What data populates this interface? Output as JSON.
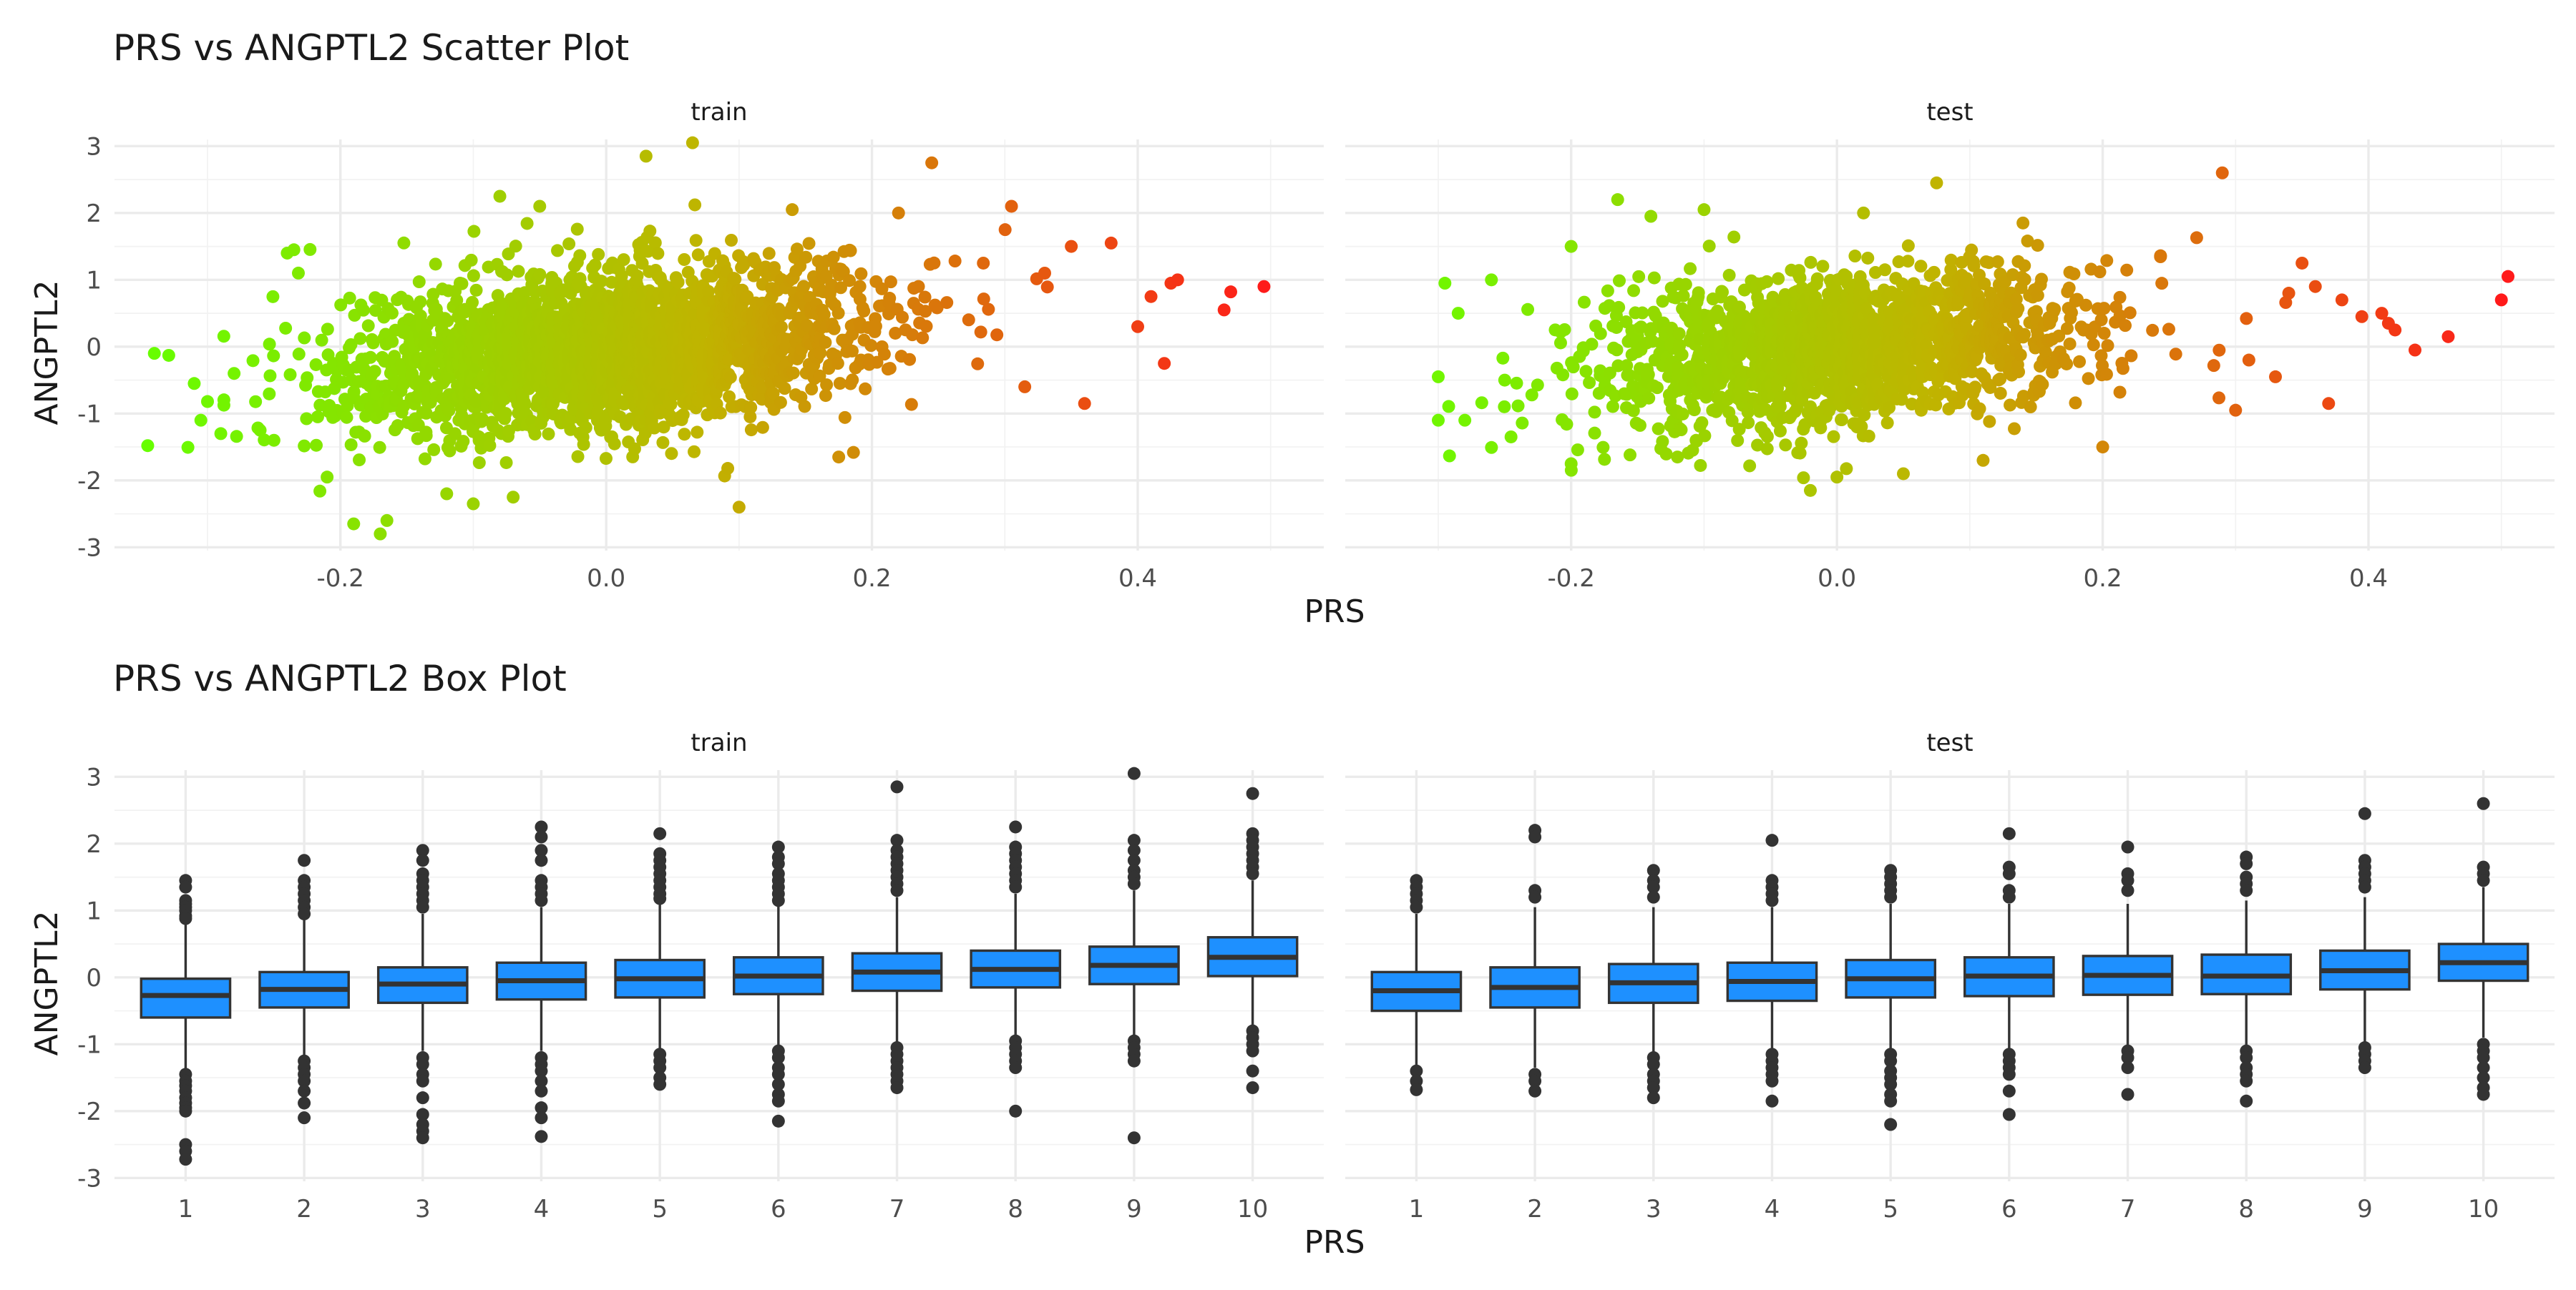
{
  "chart_data": [
    {
      "type": "scatter",
      "title": "PRS vs ANGPTL2 Scatter Plot",
      "xlabel": "PRS",
      "ylabel": "ANGPTL2",
      "color_low": "#66ff00",
      "color_mid": "#c0b400",
      "color_high": "#ff1a1a",
      "grid": true,
      "facets": [
        {
          "label": "train",
          "xlim": [
            -0.37,
            0.54
          ],
          "ylim": [
            -3.05,
            3.1
          ],
          "x_ticks": [
            -0.2,
            0.0,
            0.2,
            0.4
          ],
          "x_tick_labels": [
            "-0.2",
            "0.0",
            "0.2",
            "0.4"
          ],
          "y_ticks": [
            -3,
            -2,
            -1,
            0,
            1,
            2,
            3
          ],
          "y_tick_labels": [
            "-3",
            "-2",
            "-1",
            "0",
            "1",
            "2",
            "3"
          ],
          "cloud": {
            "n": 2600,
            "x_mean": 0.0,
            "x_sd": 0.095,
            "slope": 1.9,
            "intercept": 0.0,
            "resid_sd": 0.58
          },
          "points": [
            {
              "x": -0.34,
              "y": -0.1
            },
            {
              "x": -0.345,
              "y": -1.48
            },
            {
              "x": -0.31,
              "y": -0.55
            },
            {
              "x": -0.305,
              "y": -1.1
            },
            {
              "x": -0.3,
              "y": -0.82
            },
            {
              "x": -0.29,
              "y": -1.3
            },
            {
              "x": -0.28,
              "y": -0.4
            },
            {
              "x": -0.25,
              "y": -1.4
            },
            {
              "x": -0.24,
              "y": 1.4
            },
            {
              "x": -0.235,
              "y": 1.45
            },
            {
              "x": -0.21,
              "y": -1.95
            },
            {
              "x": -0.19,
              "y": -2.65
            },
            {
              "x": -0.17,
              "y": -2.8
            },
            {
              "x": -0.165,
              "y": -2.6
            },
            {
              "x": -0.12,
              "y": -2.2
            },
            {
              "x": -0.1,
              "y": -2.35
            },
            {
              "x": -0.08,
              "y": 2.25
            },
            {
              "x": -0.07,
              "y": -2.25
            },
            {
              "x": -0.05,
              "y": 2.1
            },
            {
              "x": 0.03,
              "y": 2.85
            },
            {
              "x": 0.065,
              "y": 3.05
            },
            {
              "x": 0.1,
              "y": -2.4
            },
            {
              "x": 0.14,
              "y": 2.05
            },
            {
              "x": 0.175,
              "y": -1.65
            },
            {
              "x": 0.22,
              "y": 2.0
            },
            {
              "x": 0.245,
              "y": 2.75
            },
            {
              "x": 0.305,
              "y": 2.1
            },
            {
              "x": 0.35,
              "y": 1.5
            },
            {
              "x": 0.36,
              "y": -0.85
            },
            {
              "x": 0.38,
              "y": 1.55
            },
            {
              "x": 0.41,
              "y": 0.75
            },
            {
              "x": 0.42,
              "y": -0.25
            },
            {
              "x": 0.425,
              "y": 0.95
            },
            {
              "x": 0.43,
              "y": 1.0
            },
            {
              "x": 0.465,
              "y": 0.55
            },
            {
              "x": 0.47,
              "y": 0.82
            },
            {
              "x": 0.495,
              "y": 0.9
            },
            {
              "x": 0.315,
              "y": -0.6
            },
            {
              "x": 0.33,
              "y": 1.1
            },
            {
              "x": 0.4,
              "y": 0.3
            }
          ]
        },
        {
          "label": "test",
          "xlim": [
            -0.37,
            0.54
          ],
          "ylim": [
            -3.05,
            3.1
          ],
          "x_ticks": [
            -0.2,
            0.0,
            0.2,
            0.4
          ],
          "x_tick_labels": [
            "-0.2",
            "0.0",
            "0.2",
            "0.4"
          ],
          "y_ticks": [
            -3,
            -2,
            -1,
            0,
            1,
            2,
            3
          ],
          "y_tick_labels": [
            "-3",
            "-2",
            "-1",
            "0",
            "1",
            "2",
            "3"
          ],
          "cloud": {
            "n": 1700,
            "x_mean": 0.0,
            "x_sd": 0.092,
            "slope": 1.9,
            "intercept": -0.02,
            "resid_sd": 0.56
          },
          "points": [
            {
              "x": -0.3,
              "y": -0.45
            },
            {
              "x": -0.295,
              "y": 0.95
            },
            {
              "x": -0.285,
              "y": 0.5
            },
            {
              "x": -0.3,
              "y": -1.1
            },
            {
              "x": -0.28,
              "y": -1.1
            },
            {
              "x": -0.26,
              "y": 1.0
            },
            {
              "x": -0.25,
              "y": -0.5
            },
            {
              "x": -0.2,
              "y": 1.5
            },
            {
              "x": -0.2,
              "y": -1.75
            },
            {
              "x": -0.165,
              "y": 2.2
            },
            {
              "x": -0.14,
              "y": 1.95
            },
            {
              "x": -0.12,
              "y": -1.65
            },
            {
              "x": -0.1,
              "y": 2.05
            },
            {
              "x": -0.02,
              "y": -2.15
            },
            {
              "x": 0.0,
              "y": -1.95
            },
            {
              "x": 0.02,
              "y": 2.0
            },
            {
              "x": 0.05,
              "y": -1.9
            },
            {
              "x": 0.075,
              "y": 2.45
            },
            {
              "x": 0.11,
              "y": -1.7
            },
            {
              "x": 0.14,
              "y": 1.85
            },
            {
              "x": 0.2,
              "y": -1.5
            },
            {
              "x": 0.29,
              "y": 2.6
            },
            {
              "x": 0.35,
              "y": 1.25
            },
            {
              "x": 0.36,
              "y": 0.9
            },
            {
              "x": 0.37,
              "y": -0.85
            },
            {
              "x": 0.38,
              "y": 0.7
            },
            {
              "x": 0.395,
              "y": 0.45
            },
            {
              "x": 0.41,
              "y": 0.5
            },
            {
              "x": 0.415,
              "y": 0.35
            },
            {
              "x": 0.42,
              "y": 0.25
            },
            {
              "x": 0.435,
              "y": -0.05
            },
            {
              "x": 0.46,
              "y": 0.15
            },
            {
              "x": 0.5,
              "y": 0.7
            },
            {
              "x": 0.505,
              "y": 1.05
            },
            {
              "x": 0.31,
              "y": -0.2
            },
            {
              "x": 0.33,
              "y": -0.45
            },
            {
              "x": 0.34,
              "y": 0.8
            },
            {
              "x": 0.3,
              "y": -0.95
            }
          ]
        }
      ]
    },
    {
      "type": "box",
      "title": "PRS vs ANGPTL2 Box Plot",
      "xlabel": "PRS",
      "ylabel": "ANGPTL2",
      "box_fill": "#1e90ff",
      "box_line": "#333333",
      "grid": true,
      "categories": [
        "1",
        "2",
        "3",
        "4",
        "5",
        "6",
        "7",
        "8",
        "9",
        "10"
      ],
      "facets": [
        {
          "label": "train",
          "ylim": [
            -3.05,
            3.1
          ],
          "y_ticks": [
            -3,
            -2,
            -1,
            0,
            1,
            2,
            3
          ],
          "y_tick_labels": [
            "-3",
            "-2",
            "-1",
            "0",
            "1",
            "2",
            "3"
          ],
          "boxes": [
            {
              "q1": -0.6,
              "median": -0.27,
              "q3": -0.02,
              "lower": -1.4,
              "upper": 0.8,
              "outliers": [
                1.45,
                1.35,
                1.15,
                1.1,
                1.05,
                1.0,
                0.92,
                0.88,
                -1.45,
                -1.55,
                -1.62,
                -1.7,
                -1.8,
                -1.88,
                -1.95,
                -2.0,
                -2.5,
                -2.6,
                -2.72
              ]
            },
            {
              "q1": -0.45,
              "median": -0.18,
              "q3": 0.08,
              "lower": -1.2,
              "upper": 0.9,
              "outliers": [
                1.75,
                1.45,
                1.35,
                1.25,
                1.15,
                1.05,
                0.95,
                -1.25,
                -1.35,
                -1.45,
                -1.55,
                -1.7,
                -1.88,
                -2.1
              ]
            },
            {
              "q1": -0.38,
              "median": -0.1,
              "q3": 0.15,
              "lower": -1.1,
              "upper": 0.95,
              "outliers": [
                1.9,
                1.75,
                1.55,
                1.45,
                1.35,
                1.25,
                1.15,
                1.05,
                -1.2,
                -1.3,
                -1.45,
                -1.55,
                -1.8,
                -2.05,
                -2.2,
                -2.3,
                -2.4
              ]
            },
            {
              "q1": -0.33,
              "median": -0.05,
              "q3": 0.22,
              "lower": -1.1,
              "upper": 1.05,
              "outliers": [
                2.25,
                2.1,
                1.9,
                1.75,
                1.45,
                1.35,
                1.25,
                1.15,
                -1.2,
                -1.3,
                -1.4,
                -1.55,
                -1.7,
                -1.95,
                -2.1,
                -2.38
              ]
            },
            {
              "q1": -0.3,
              "median": -0.02,
              "q3": 0.26,
              "lower": -1.1,
              "upper": 1.1,
              "outliers": [
                2.15,
                1.85,
                1.75,
                1.65,
                1.55,
                1.45,
                1.35,
                1.25,
                1.18,
                -1.15,
                -1.25,
                -1.35,
                -1.5,
                -1.6
              ]
            },
            {
              "q1": -0.25,
              "median": 0.02,
              "q3": 0.3,
              "lower": -1.05,
              "upper": 1.1,
              "outliers": [
                1.95,
                1.8,
                1.7,
                1.55,
                1.45,
                1.35,
                1.25,
                1.15,
                -1.1,
                -1.2,
                -1.35,
                -1.45,
                -1.6,
                -1.75,
                -1.85,
                -2.15
              ]
            },
            {
              "q1": -0.2,
              "median": 0.08,
              "q3": 0.36,
              "lower": -1.0,
              "upper": 1.2,
              "outliers": [
                2.85,
                2.05,
                1.9,
                1.8,
                1.7,
                1.6,
                1.5,
                1.4,
                1.3,
                -1.05,
                -1.15,
                -1.25,
                -1.35,
                -1.45,
                -1.55,
                -1.65
              ]
            },
            {
              "q1": -0.15,
              "median": 0.12,
              "q3": 0.4,
              "lower": -0.95,
              "upper": 1.25,
              "outliers": [
                2.25,
                1.95,
                1.85,
                1.75,
                1.65,
                1.55,
                1.45,
                1.35,
                -0.95,
                -1.05,
                -1.15,
                -1.25,
                -1.35,
                -2.0
              ]
            },
            {
              "q1": -0.1,
              "median": 0.18,
              "q3": 0.46,
              "lower": -0.9,
              "upper": 1.3,
              "outliers": [
                3.05,
                2.05,
                1.9,
                1.75,
                1.6,
                1.5,
                1.4,
                -0.95,
                -1.05,
                -1.15,
                -1.25,
                -2.4
              ]
            },
            {
              "q1": 0.02,
              "median": 0.3,
              "q3": 0.6,
              "lower": -0.75,
              "upper": 1.45,
              "outliers": [
                2.75,
                2.15,
                2.05,
                1.95,
                1.85,
                1.75,
                1.65,
                1.55,
                -0.8,
                -0.9,
                -1.0,
                -1.1,
                -1.4,
                -1.65
              ]
            }
          ]
        },
        {
          "label": "test",
          "ylim": [
            -3.05,
            3.1
          ],
          "y_ticks": [
            -3,
            -2,
            -1,
            0,
            1,
            2,
            3
          ],
          "y_tick_labels": [
            "-3",
            "-2",
            "-1",
            "0",
            "1",
            "2",
            "3"
          ],
          "boxes": [
            {
              "q1": -0.5,
              "median": -0.2,
              "q3": 0.08,
              "lower": -1.35,
              "upper": 0.95,
              "outliers": [
                1.45,
                1.35,
                1.25,
                1.15,
                1.05,
                -1.4,
                -1.55,
                -1.68
              ]
            },
            {
              "q1": -0.45,
              "median": -0.15,
              "q3": 0.15,
              "lower": -1.35,
              "upper": 1.05,
              "outliers": [
                2.2,
                2.1,
                1.3,
                1.2,
                -1.45,
                -1.55,
                -1.7
              ]
            },
            {
              "q1": -0.38,
              "median": -0.08,
              "q3": 0.2,
              "lower": -1.15,
              "upper": 1.05,
              "outliers": [
                1.6,
                1.45,
                1.35,
                1.2,
                -1.2,
                -1.3,
                -1.45,
                -1.55,
                -1.65,
                -1.8
              ]
            },
            {
              "q1": -0.35,
              "median": -0.06,
              "q3": 0.22,
              "lower": -1.15,
              "upper": 1.05,
              "outliers": [
                2.05,
                1.45,
                1.35,
                1.25,
                1.15,
                -1.15,
                -1.25,
                -1.35,
                -1.45,
                -1.55,
                -1.85
              ]
            },
            {
              "q1": -0.3,
              "median": -0.02,
              "q3": 0.26,
              "lower": -1.1,
              "upper": 1.1,
              "outliers": [
                1.6,
                1.5,
                1.4,
                1.3,
                1.2,
                -1.15,
                -1.25,
                -1.4,
                -1.5,
                -1.6,
                -1.75,
                -1.85,
                -2.2
              ]
            },
            {
              "q1": -0.28,
              "median": 0.02,
              "q3": 0.3,
              "lower": -1.1,
              "upper": 1.1,
              "outliers": [
                2.15,
                1.65,
                1.55,
                1.3,
                1.2,
                -1.15,
                -1.25,
                -1.35,
                -1.45,
                -1.7,
                -2.05
              ]
            },
            {
              "q1": -0.26,
              "median": 0.03,
              "q3": 0.32,
              "lower": -1.05,
              "upper": 1.1,
              "outliers": [
                1.95,
                1.55,
                1.45,
                1.3,
                -1.1,
                -1.2,
                -1.35,
                -1.75
              ]
            },
            {
              "q1": -0.25,
              "median": 0.02,
              "q3": 0.34,
              "lower": -1.05,
              "upper": 1.15,
              "outliers": [
                1.8,
                1.7,
                1.5,
                1.4,
                1.3,
                -1.1,
                -1.2,
                -1.35,
                -1.45,
                -1.55,
                -1.85
              ]
            },
            {
              "q1": -0.18,
              "median": 0.1,
              "q3": 0.4,
              "lower": -1.0,
              "upper": 1.2,
              "outliers": [
                2.45,
                1.75,
                1.65,
                1.55,
                1.45,
                1.35,
                -1.05,
                -1.15,
                -1.25,
                -1.35
              ]
            },
            {
              "q1": -0.05,
              "median": 0.22,
              "q3": 0.5,
              "lower": -0.9,
              "upper": 1.35,
              "outliers": [
                2.6,
                1.65,
                1.55,
                1.45,
                -1.0,
                -1.1,
                -1.2,
                -1.35,
                -1.5,
                -1.65,
                -1.75
              ]
            }
          ]
        }
      ]
    }
  ]
}
